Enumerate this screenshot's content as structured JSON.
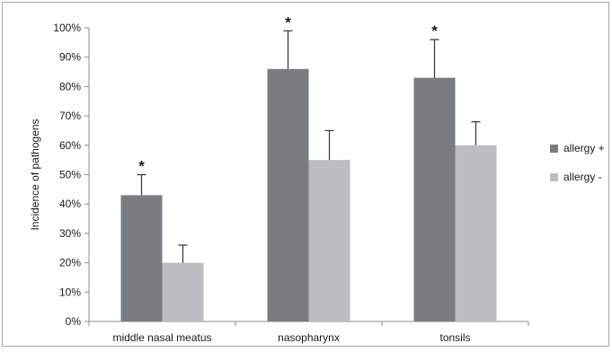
{
  "chart_data": {
    "type": "bar",
    "title": "",
    "xlabel": "",
    "ylabel": "Incidence of pathogens",
    "ylim": [
      0,
      100
    ],
    "y_ticks": [
      "0%",
      "10%",
      "20%",
      "30%",
      "40%",
      "50%",
      "60%",
      "70%",
      "80%",
      "90%",
      "100%"
    ],
    "categories": [
      "middle nasal meatus",
      "nasopharynx",
      "tonsils"
    ],
    "series": [
      {
        "name": "allergy +",
        "color": "#7b7c80",
        "values": [
          43,
          86,
          83
        ],
        "error_upper": [
          50,
          99,
          96
        ]
      },
      {
        "name": "allergy -",
        "color": "#bcbdc0",
        "values": [
          20,
          55,
          60
        ],
        "error_upper": [
          26,
          65,
          68
        ]
      }
    ],
    "annotations": [
      {
        "text": "*",
        "category": "middle nasal meatus",
        "series": "allergy +"
      },
      {
        "text": "*",
        "category": "nasopharynx",
        "series": "allergy +"
      },
      {
        "text": "*",
        "category": "tonsils",
        "series": "allergy +"
      }
    ],
    "legend_position": "right",
    "grid": false
  }
}
